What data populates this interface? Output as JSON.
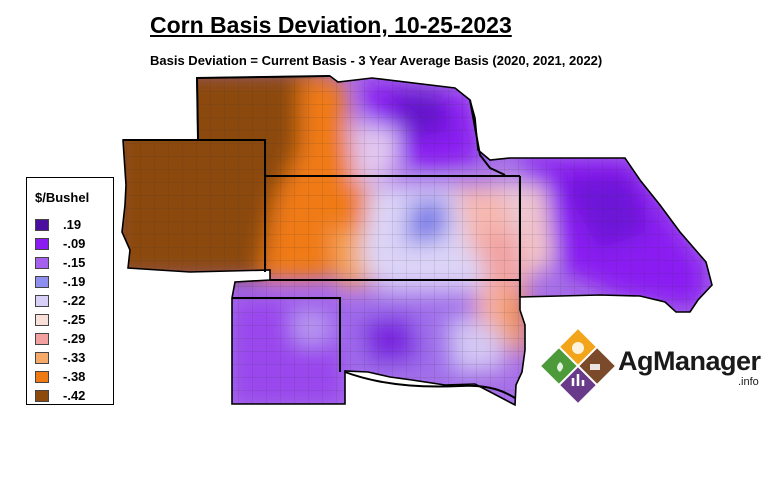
{
  "title": "Corn Basis Deviation, 10-25-2023",
  "subtitle": "Basis Deviation = Current Basis - 3 Year Average Basis (2020, 2021, 2022)",
  "legend": {
    "title": "$/Bushel",
    "items": [
      {
        "label": ".19",
        "color": "#4a0f9e"
      },
      {
        "label": "-.09",
        "color": "#8a1cf2"
      },
      {
        "label": "-.15",
        "color": "#a660ee"
      },
      {
        "label": "-.19",
        "color": "#8f8ff0"
      },
      {
        "label": "-.22",
        "color": "#d8d0f7"
      },
      {
        "label": "-.25",
        "color": "#f8dfd8"
      },
      {
        "label": "-.29",
        "color": "#f3a0a0"
      },
      {
        "label": "-.33",
        "color": "#f6aa6a"
      },
      {
        "label": "-.38",
        "color": "#f07a12"
      },
      {
        "label": "-.42",
        "color": "#8c4a0c"
      }
    ]
  },
  "logo": {
    "name": "AgManager",
    "suffix": ".info"
  }
}
